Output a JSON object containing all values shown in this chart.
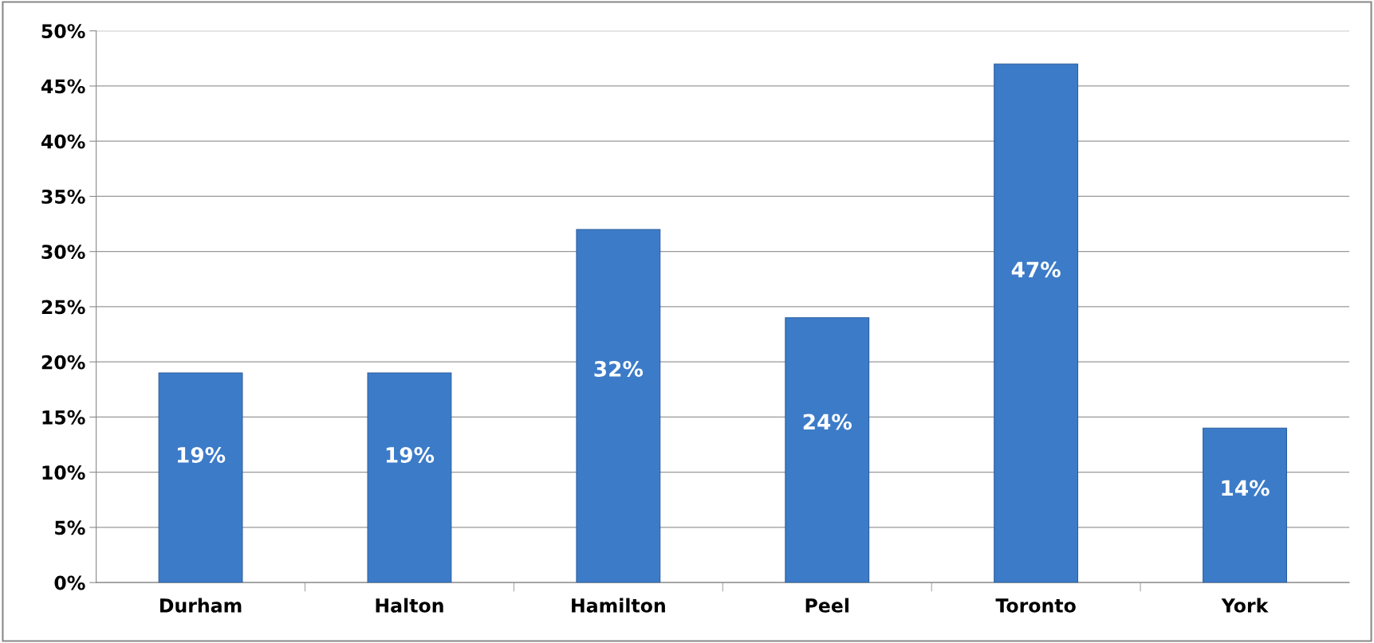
{
  "chart_data": {
    "type": "bar",
    "categories": [
      "Durham",
      "Halton",
      "Hamilton",
      "Peel",
      "Toronto",
      "York"
    ],
    "values": [
      19,
      19,
      32,
      24,
      47,
      14
    ],
    "value_labels": [
      "19%",
      "19%",
      "32%",
      "24%",
      "47%",
      "14%"
    ],
    "color": "#3c7bc8",
    "ylim": [
      0,
      50
    ],
    "yticks": [
      {
        "value": 0,
        "label": "0%"
      },
      {
        "value": 5,
        "label": "5%"
      },
      {
        "value": 10,
        "label": "10%"
      },
      {
        "value": 15,
        "label": "15%"
      },
      {
        "value": 20,
        "label": "20%"
      },
      {
        "value": 25,
        "label": "25%"
      },
      {
        "value": 30,
        "label": "30%"
      },
      {
        "value": 35,
        "label": "35%"
      },
      {
        "value": 40,
        "label": "40%"
      },
      {
        "value": 45,
        "label": "45%"
      },
      {
        "value": 50,
        "label": "50%"
      }
    ],
    "grid": "y",
    "legend": false
  }
}
